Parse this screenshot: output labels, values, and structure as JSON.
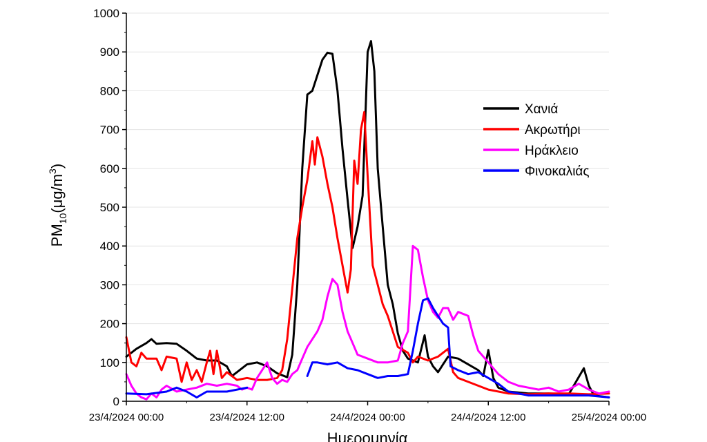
{
  "chart_data": {
    "type": "line",
    "xlabel": "Ημερομηνία",
    "ylabel": {
      "main": "PM",
      "sub": "10",
      "unit_pre": "(μg/m",
      "sup": "3",
      "unit_post": ")"
    },
    "ylim": [
      0,
      1000
    ],
    "yticks": [
      0,
      100,
      200,
      300,
      400,
      500,
      600,
      700,
      800,
      900,
      1000
    ],
    "xlim": [
      "2024-04-23T00:00",
      "2024-04-25T00:00"
    ],
    "xticks": [
      "23/4/2024 00:00",
      "23/4/2024 12:00",
      "24/4/2024 00:00",
      "24/4/2024 12:00",
      "25/4/2024 00:00"
    ],
    "grid": "horizontal",
    "legend_position": "right",
    "series": [
      {
        "name": "Χανιά",
        "color": "#000000",
        "points": [
          [
            "2024-04-23T00:00",
            115
          ],
          [
            "2024-04-23T01:00",
            135
          ],
          [
            "2024-04-23T02:00",
            150
          ],
          [
            "2024-04-23T02:30",
            160
          ],
          [
            "2024-04-23T03:00",
            148
          ],
          [
            "2024-04-23T04:00",
            150
          ],
          [
            "2024-04-23T05:00",
            148
          ],
          [
            "2024-04-23T06:00",
            130
          ],
          [
            "2024-04-23T07:00",
            110
          ],
          [
            "2024-04-23T08:00",
            105
          ],
          [
            "2024-04-23T09:00",
            105
          ],
          [
            "2024-04-23T10:00",
            90
          ],
          [
            "2024-04-23T10:30",
            65
          ],
          [
            "2024-04-23T11:00",
            75
          ],
          [
            "2024-04-23T12:00",
            95
          ],
          [
            "2024-04-23T13:00",
            100
          ],
          [
            "2024-04-23T14:00",
            90
          ],
          [
            "2024-04-23T15:00",
            72
          ],
          [
            "2024-04-23T16:00",
            62
          ],
          [
            "2024-04-23T16:30",
            120
          ],
          [
            "2024-04-23T17:00",
            300
          ],
          [
            "2024-04-23T17:30",
            600
          ],
          [
            "2024-04-23T18:00",
            790
          ],
          [
            "2024-04-23T18:30",
            800
          ],
          [
            "2024-04-23T19:00",
            840
          ],
          [
            "2024-04-23T19:30",
            880
          ],
          [
            "2024-04-23T20:00",
            898
          ],
          [
            "2024-04-23T20:30",
            895
          ],
          [
            "2024-04-23T21:00",
            800
          ],
          [
            "2024-04-23T21:30",
            650
          ],
          [
            "2024-04-23T22:00",
            520
          ],
          [
            "2024-04-23T22:30",
            395
          ],
          [
            "2024-04-23T23:00",
            450
          ],
          [
            "2024-04-23T23:30",
            530
          ],
          [
            "2024-04-24T00:00",
            900
          ],
          [
            "2024-04-24T00:20",
            928
          ],
          [
            "2024-04-24T00:40",
            850
          ],
          [
            "2024-04-24T01:00",
            600
          ],
          [
            "2024-04-24T01:30",
            450
          ],
          [
            "2024-04-24T02:00",
            300
          ],
          [
            "2024-04-24T02:30",
            250
          ],
          [
            "2024-04-24T03:00",
            175
          ],
          [
            "2024-04-24T03:30",
            130
          ],
          [
            "2024-04-24T04:00",
            110
          ],
          [
            "2024-04-24T05:00",
            100
          ],
          [
            "2024-04-24T05:40",
            170
          ],
          [
            "2024-04-24T06:00",
            115
          ],
          [
            "2024-04-24T06:30",
            90
          ],
          [
            "2024-04-24T07:00",
            75
          ],
          [
            "2024-04-24T07:30",
            95
          ],
          [
            "2024-04-24T08:00",
            115
          ],
          [
            "2024-04-24T09:00",
            110
          ],
          [
            "2024-04-24T10:00",
            95
          ],
          [
            "2024-04-24T11:00",
            80
          ],
          [
            "2024-04-24T11:30",
            65
          ],
          [
            "2024-04-24T12:00",
            132
          ],
          [
            "2024-04-24T12:30",
            60
          ],
          [
            "2024-04-24T13:00",
            35
          ],
          [
            "2024-04-24T14:00",
            25
          ],
          [
            "2024-04-24T16:00",
            20
          ],
          [
            "2024-04-24T18:00",
            20
          ],
          [
            "2024-04-24T20:00",
            18
          ],
          [
            "2024-04-24T21:30",
            85
          ],
          [
            "2024-04-24T22:00",
            40
          ],
          [
            "2024-04-24T22:30",
            15
          ],
          [
            "2024-04-25T00:00",
            10
          ]
        ]
      },
      {
        "name": "Ακρωτήρι",
        "color": "#ff0000",
        "points": [
          [
            "2024-04-23T00:00",
            165
          ],
          [
            "2024-04-23T00:30",
            100
          ],
          [
            "2024-04-23T01:00",
            90
          ],
          [
            "2024-04-23T01:30",
            125
          ],
          [
            "2024-04-23T02:00",
            110
          ],
          [
            "2024-04-23T03:00",
            110
          ],
          [
            "2024-04-23T03:30",
            80
          ],
          [
            "2024-04-23T04:00",
            115
          ],
          [
            "2024-04-23T05:00",
            110
          ],
          [
            "2024-04-23T05:30",
            50
          ],
          [
            "2024-04-23T06:00",
            100
          ],
          [
            "2024-04-23T06:30",
            55
          ],
          [
            "2024-04-23T07:00",
            80
          ],
          [
            "2024-04-23T07:30",
            50
          ],
          [
            "2024-04-23T08:00",
            100
          ],
          [
            "2024-04-23T08:20",
            130
          ],
          [
            "2024-04-23T08:40",
            70
          ],
          [
            "2024-04-23T09:00",
            130
          ],
          [
            "2024-04-23T09:30",
            60
          ],
          [
            "2024-04-23T10:00",
            75
          ],
          [
            "2024-04-23T11:00",
            55
          ],
          [
            "2024-04-23T12:00",
            60
          ],
          [
            "2024-04-23T13:00",
            55
          ],
          [
            "2024-04-23T14:00",
            55
          ],
          [
            "2024-04-23T15:00",
            60
          ],
          [
            "2024-04-23T15:30",
            80
          ],
          [
            "2024-04-23T16:00",
            160
          ],
          [
            "2024-04-23T16:30",
            290
          ],
          [
            "2024-04-23T17:00",
            420
          ],
          [
            "2024-04-23T17:30",
            500
          ],
          [
            "2024-04-23T18:00",
            570
          ],
          [
            "2024-04-23T18:30",
            670
          ],
          [
            "2024-04-23T18:45",
            610
          ],
          [
            "2024-04-23T19:00",
            680
          ],
          [
            "2024-04-23T19:30",
            630
          ],
          [
            "2024-04-23T20:00",
            560
          ],
          [
            "2024-04-23T20:30",
            500
          ],
          [
            "2024-04-23T21:00",
            420
          ],
          [
            "2024-04-23T21:30",
            350
          ],
          [
            "2024-04-23T22:00",
            280
          ],
          [
            "2024-04-23T22:20",
            340
          ],
          [
            "2024-04-23T22:40",
            620
          ],
          [
            "2024-04-23T23:00",
            560
          ],
          [
            "2024-04-23T23:20",
            700
          ],
          [
            "2024-04-23T23:40",
            745
          ],
          [
            "2024-04-24T00:00",
            580
          ],
          [
            "2024-04-24T00:30",
            350
          ],
          [
            "2024-04-24T01:00",
            300
          ],
          [
            "2024-04-24T01:30",
            250
          ],
          [
            "2024-04-24T02:00",
            220
          ],
          [
            "2024-04-24T02:30",
            180
          ],
          [
            "2024-04-24T03:00",
            140
          ],
          [
            "2024-04-24T04:00",
            125
          ],
          [
            "2024-04-24T04:30",
            100
          ],
          [
            "2024-04-24T05:00",
            115
          ],
          [
            "2024-04-24T06:00",
            105
          ],
          [
            "2024-04-24T07:00",
            115
          ],
          [
            "2024-04-24T08:00",
            135
          ],
          [
            "2024-04-24T08:30",
            75
          ],
          [
            "2024-04-24T09:00",
            60
          ],
          [
            "2024-04-24T10:00",
            50
          ],
          [
            "2024-04-24T11:00",
            40
          ],
          [
            "2024-04-24T12:00",
            30
          ],
          [
            "2024-04-24T14:00",
            20
          ],
          [
            "2024-04-24T16:00",
            18
          ],
          [
            "2024-04-24T18:00",
            20
          ],
          [
            "2024-04-24T20:00",
            20
          ],
          [
            "2024-04-24T22:00",
            18
          ],
          [
            "2024-04-25T00:00",
            20
          ]
        ]
      },
      {
        "name": "Ηράκλειο",
        "color": "#ff00ff",
        "points": [
          [
            "2024-04-23T00:00",
            70
          ],
          [
            "2024-04-23T00:30",
            40
          ],
          [
            "2024-04-23T01:00",
            20
          ],
          [
            "2024-04-23T01:30",
            10
          ],
          [
            "2024-04-23T02:00",
            5
          ],
          [
            "2024-04-23T02:30",
            20
          ],
          [
            "2024-04-23T03:00",
            10
          ],
          [
            "2024-04-23T03:30",
            30
          ],
          [
            "2024-04-23T04:00",
            40
          ],
          [
            "2024-04-23T05:00",
            25
          ],
          [
            "2024-04-23T06:00",
            30
          ],
          [
            "2024-04-23T07:00",
            35
          ],
          [
            "2024-04-23T08:00",
            45
          ],
          [
            "2024-04-23T09:00",
            40
          ],
          [
            "2024-04-23T10:00",
            45
          ],
          [
            "2024-04-23T11:00",
            40
          ],
          [
            "2024-04-23T11:30",
            30
          ],
          [
            "2024-04-23T12:00",
            35
          ],
          [
            "2024-04-23T12:30",
            30
          ],
          [
            "2024-04-23T13:00",
            60
          ],
          [
            "2024-04-23T14:00",
            100
          ],
          [
            "2024-04-23T14:30",
            60
          ],
          [
            "2024-04-23T15:00",
            45
          ],
          [
            "2024-04-23T15:30",
            55
          ],
          [
            "2024-04-23T16:00",
            50
          ],
          [
            "2024-04-23T16:30",
            70
          ],
          [
            "2024-04-23T17:00",
            80
          ],
          [
            "2024-04-23T17:30",
            110
          ],
          [
            "2024-04-23T18:00",
            140
          ],
          [
            "2024-04-23T18:30",
            160
          ],
          [
            "2024-04-23T19:00",
            180
          ],
          [
            "2024-04-23T19:30",
            210
          ],
          [
            "2024-04-23T20:00",
            270
          ],
          [
            "2024-04-23T20:30",
            315
          ],
          [
            "2024-04-23T21:00",
            300
          ],
          [
            "2024-04-23T21:30",
            230
          ],
          [
            "2024-04-23T22:00",
            180
          ],
          [
            "2024-04-23T22:30",
            150
          ],
          [
            "2024-04-23T23:00",
            120
          ],
          [
            "2024-04-24T00:00",
            110
          ],
          [
            "2024-04-24T01:00",
            100
          ],
          [
            "2024-04-24T02:00",
            100
          ],
          [
            "2024-04-24T03:00",
            105
          ],
          [
            "2024-04-24T03:30",
            150
          ],
          [
            "2024-04-24T04:00",
            180
          ],
          [
            "2024-04-24T04:30",
            400
          ],
          [
            "2024-04-24T05:00",
            390
          ],
          [
            "2024-04-24T05:30",
            320
          ],
          [
            "2024-04-24T06:00",
            260
          ],
          [
            "2024-04-24T06:30",
            230
          ],
          [
            "2024-04-24T07:00",
            215
          ],
          [
            "2024-04-24T07:30",
            240
          ],
          [
            "2024-04-24T08:00",
            240
          ],
          [
            "2024-04-24T08:30",
            210
          ],
          [
            "2024-04-24T09:00",
            230
          ],
          [
            "2024-04-24T10:00",
            220
          ],
          [
            "2024-04-24T10:30",
            170
          ],
          [
            "2024-04-24T11:00",
            130
          ],
          [
            "2024-04-24T12:00",
            100
          ],
          [
            "2024-04-24T13:00",
            70
          ],
          [
            "2024-04-24T14:00",
            50
          ],
          [
            "2024-04-24T15:00",
            40
          ],
          [
            "2024-04-24T16:00",
            35
          ],
          [
            "2024-04-24T17:00",
            30
          ],
          [
            "2024-04-24T18:00",
            35
          ],
          [
            "2024-04-24T19:00",
            25
          ],
          [
            "2024-04-24T20:00",
            30
          ],
          [
            "2024-04-24T21:00",
            45
          ],
          [
            "2024-04-24T22:00",
            30
          ],
          [
            "2024-04-24T23:00",
            20
          ],
          [
            "2024-04-25T00:00",
            25
          ]
        ]
      },
      {
        "name": "Φινοκαλιάς",
        "color": "#0000ff",
        "points": [
          [
            "2024-04-23T00:00",
            20
          ],
          [
            "2024-04-23T02:00",
            18
          ],
          [
            "2024-04-23T04:00",
            25
          ],
          [
            "2024-04-23T05:00",
            35
          ],
          [
            "2024-04-23T06:00",
            25
          ],
          [
            "2024-04-23T07:00",
            10
          ],
          [
            "2024-04-23T08:00",
            25
          ],
          [
            "2024-04-23T10:00",
            25
          ],
          [
            "2024-04-23T12:00",
            35
          ],
          null,
          [
            "2024-04-23T18:00",
            65
          ],
          [
            "2024-04-23T18:30",
            100
          ],
          [
            "2024-04-23T19:00",
            100
          ],
          [
            "2024-04-23T20:00",
            95
          ],
          [
            "2024-04-23T21:00",
            100
          ],
          [
            "2024-04-23T22:00",
            85
          ],
          [
            "2024-04-23T23:00",
            80
          ],
          [
            "2024-04-24T00:00",
            70
          ],
          [
            "2024-04-24T01:00",
            60
          ],
          [
            "2024-04-24T02:00",
            65
          ],
          [
            "2024-04-24T03:00",
            65
          ],
          [
            "2024-04-24T04:00",
            70
          ],
          [
            "2024-04-24T04:30",
            130
          ],
          [
            "2024-04-24T05:00",
            200
          ],
          [
            "2024-04-24T05:30",
            260
          ],
          [
            "2024-04-24T06:00",
            265
          ],
          [
            "2024-04-24T06:30",
            240
          ],
          [
            "2024-04-24T07:00",
            220
          ],
          [
            "2024-04-24T07:30",
            200
          ],
          [
            "2024-04-24T08:00",
            190
          ],
          [
            "2024-04-24T08:15",
            90
          ],
          [
            "2024-04-24T09:00",
            80
          ],
          [
            "2024-04-24T10:00",
            70
          ],
          [
            "2024-04-24T11:00",
            75
          ],
          [
            "2024-04-24T12:00",
            60
          ],
          [
            "2024-04-24T13:00",
            45
          ],
          [
            "2024-04-24T14:00",
            25
          ],
          [
            "2024-04-24T16:00",
            15
          ],
          [
            "2024-04-24T18:00",
            15
          ],
          [
            "2024-04-24T20:00",
            15
          ],
          [
            "2024-04-24T22:00",
            15
          ],
          [
            "2024-04-25T00:00",
            10
          ]
        ]
      }
    ]
  }
}
